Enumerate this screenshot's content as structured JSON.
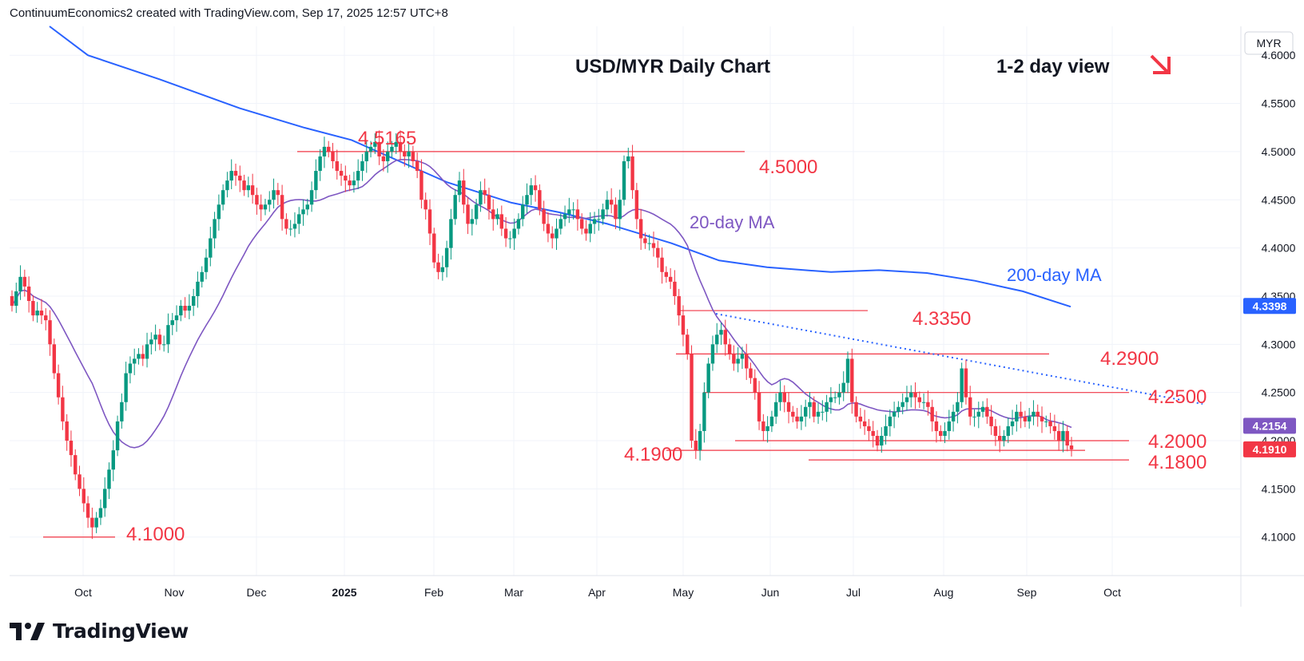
{
  "header": {
    "attribution": "ContinuumEconomics2 created with TradingView.com, Sep 17, 2025 12:57 UTC+8"
  },
  "footer": {
    "brand": "TradingView"
  },
  "colors": {
    "up": "#089981",
    "down": "#f23645",
    "ma20": "#7e57c2",
    "ma200": "#2962ff",
    "level": "#f23645",
    "trendline": "#2962ff"
  },
  "chart_data": {
    "type": "candlestick",
    "title": "USD/MYR Daily Chart",
    "view_label": "1-2 day view",
    "view_direction": "down",
    "currency": "MYR",
    "ylim": [
      4.06,
      4.63
    ],
    "y_ticks": [
      "4.6000",
      "4.5500",
      "4.5000",
      "4.4500",
      "4.4000",
      "4.3500",
      "4.3000",
      "4.2500",
      "4.2000",
      "4.1500",
      "4.1000"
    ],
    "x_ticks": [
      "Oct",
      "Nov",
      "Dec",
      "2025",
      "Feb",
      "Mar",
      "Apr",
      "May",
      "Jun",
      "Jul",
      "Aug",
      "Sep",
      "Oct"
    ],
    "price_tags": [
      {
        "label": "4.3398",
        "value": 4.3398,
        "color": "#2962ff"
      },
      {
        "label": "4.2154",
        "value": 4.2154,
        "color": "#7e57c2"
      },
      {
        "label": "4.1910",
        "value": 4.191,
        "color": "#f23645"
      }
    ],
    "levels": [
      {
        "label": "4.5165",
        "value": 4.5165
      },
      {
        "label": "4.5000",
        "value": 4.5
      },
      {
        "label": "4.3350",
        "value": 4.335
      },
      {
        "label": "4.2900",
        "value": 4.29
      },
      {
        "label": "4.2500",
        "value": 4.25
      },
      {
        "label": "4.2000",
        "value": 4.2
      },
      {
        "label": "4.1900",
        "value": 4.19
      },
      {
        "label": "4.1800",
        "value": 4.18
      },
      {
        "label": "4.1000",
        "value": 4.1
      }
    ],
    "ma_labels": {
      "ma20": "20-day MA",
      "ma200": "200-day MA"
    },
    "closes": [
      4.34,
      4.355,
      4.37,
      4.36,
      4.345,
      4.33,
      4.335,
      4.33,
      4.325,
      4.3,
      4.27,
      4.245,
      4.22,
      4.2,
      4.185,
      4.165,
      4.15,
      4.135,
      4.12,
      4.11,
      4.12,
      4.13,
      4.15,
      4.17,
      4.19,
      4.22,
      4.24,
      4.27,
      4.28,
      4.285,
      4.29,
      4.285,
      4.3,
      4.305,
      4.31,
      4.3,
      4.3,
      4.32,
      4.325,
      4.33,
      4.34,
      4.335,
      4.34,
      4.35,
      4.365,
      4.375,
      4.39,
      4.41,
      4.43,
      4.445,
      4.46,
      4.47,
      4.48,
      4.475,
      4.47,
      4.46,
      4.465,
      4.455,
      4.445,
      4.44,
      4.445,
      4.45,
      4.46,
      4.455,
      4.43,
      4.42,
      4.42,
      4.425,
      4.435,
      4.44,
      4.445,
      4.46,
      4.48,
      4.495,
      4.505,
      4.5,
      4.49,
      4.48,
      4.475,
      4.47,
      4.465,
      4.47,
      4.48,
      4.49,
      4.5,
      4.505,
      4.51,
      4.495,
      4.49,
      4.5,
      4.505,
      4.51,
      4.5,
      4.495,
      4.5,
      4.49,
      4.48,
      4.45,
      4.44,
      4.415,
      4.385,
      4.375,
      4.38,
      4.4,
      4.43,
      4.455,
      4.47,
      4.445,
      4.425,
      4.43,
      4.445,
      4.46,
      4.455,
      4.44,
      4.43,
      4.435,
      4.42,
      4.41,
      4.41,
      4.42,
      4.43,
      4.445,
      4.455,
      4.465,
      4.46,
      4.44,
      4.425,
      4.415,
      4.41,
      4.42,
      4.43,
      4.435,
      4.44,
      4.44,
      4.43,
      4.42,
      4.415,
      4.425,
      4.43,
      4.43,
      4.44,
      4.45,
      4.445,
      4.43,
      4.45,
      4.49,
      4.495,
      4.46,
      4.43,
      4.41,
      4.405,
      4.405,
      4.4,
      4.39,
      4.375,
      4.37,
      4.365,
      4.35,
      4.33,
      4.31,
      4.29,
      4.2,
      4.19,
      4.21,
      4.25,
      4.28,
      4.3,
      4.31,
      4.315,
      4.3,
      4.29,
      4.28,
      4.285,
      4.29,
      4.275,
      4.265,
      4.25,
      4.22,
      4.21,
      4.215,
      4.225,
      4.24,
      4.25,
      4.24,
      4.23,
      4.225,
      4.22,
      4.225,
      4.235,
      4.24,
      4.225,
      4.23,
      4.23,
      4.24,
      4.245,
      4.245,
      4.25,
      4.26,
      4.285,
      4.24,
      4.225,
      4.22,
      4.215,
      4.21,
      4.205,
      4.195,
      4.205,
      4.215,
      4.225,
      4.23,
      4.235,
      4.24,
      4.245,
      4.25,
      4.245,
      4.24,
      4.24,
      4.235,
      4.22,
      4.21,
      4.205,
      4.21,
      4.22,
      4.23,
      4.24,
      4.275,
      4.245,
      4.225,
      4.225,
      4.23,
      4.235,
      4.225,
      4.215,
      4.205,
      4.2,
      4.205,
      4.215,
      4.22,
      4.23,
      4.225,
      4.22,
      4.225,
      4.23,
      4.225,
      4.22,
      4.22,
      4.215,
      4.21,
      4.2,
      4.21,
      4.195,
      4.191
    ]
  }
}
